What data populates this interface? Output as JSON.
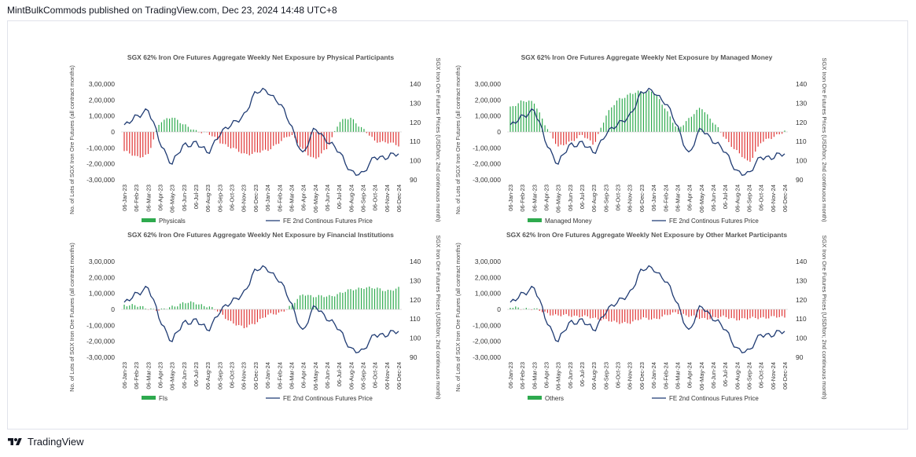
{
  "header": {
    "publisher_line": "MintBulkCommods published on TradingView.com, Dec 23, 2024 14:48 UTC+8"
  },
  "footer": {
    "brand": "TradingView",
    "logo_icon": "tradingview-logo-icon"
  },
  "colors": {
    "positive_bar": "#2eaa4e",
    "negative_bar": "#e03535",
    "price_line": "#1f3b73",
    "axis_text": "#333333"
  },
  "shared": {
    "dates": [
      "06-Jan-23",
      "06-Feb-23",
      "06-Mar-23",
      "06-Apr-23",
      "06-May-23",
      "06-Jun-23",
      "06-Jul-23",
      "06-Aug-23",
      "06-Sep-23",
      "06-Oct-23",
      "06-Nov-23",
      "06-Dec-23",
      "06-Jan-24",
      "06-Feb-24",
      "06-Mar-24",
      "06-Apr-24",
      "06-May-24",
      "06-Jun-24",
      "06-Jul-24",
      "06-Aug-24",
      "06-Sep-24",
      "06-Oct-24",
      "06-Nov-24",
      "06-Dec-24"
    ],
    "left_ticks": [
      "3,00,000",
      "2,00,000",
      "1,00,000",
      "0",
      "-1,00,000",
      "-2,00,000",
      "-3,00,000"
    ],
    "right_ticks": [
      "140",
      "130",
      "120",
      "110",
      "100",
      "90"
    ],
    "ylabel_left": "No. of Lots of SGX Iron Ore Futures (all contract months)",
    "ylabel_right": "SGX Iron Ore Futures Prices (USD/ton; 2nd continuous month)",
    "line_series_name": "FE 2nd Continous Futures Price",
    "price_monthly": [
      117,
      124,
      126,
      110,
      98,
      108,
      110,
      103,
      115,
      118,
      124,
      135,
      137,
      130,
      118,
      103,
      117,
      111,
      104,
      95,
      92,
      103,
      101,
      104
    ]
  },
  "chart_data": [
    {
      "type": "bar",
      "title": "SGX 62% Iron Ore Futures Aggregate Weekly Net Exposure by Physical Participants",
      "ylabel": "No. of Lots of SGX Iron Ore Futures (all contract months)",
      "ylabel_right": "SGX Iron Ore Futures Prices (USD/ton; 2nd continuous month)",
      "ylim": [
        -300000,
        300000
      ],
      "ylim_right": [
        90,
        140
      ],
      "categories": [
        "06-Jan-23",
        "06-Feb-23",
        "06-Mar-23",
        "06-Apr-23",
        "06-May-23",
        "06-Jun-23",
        "06-Jul-23",
        "06-Aug-23",
        "06-Sep-23",
        "06-Oct-23",
        "06-Nov-23",
        "06-Dec-23",
        "06-Jan-24",
        "06-Feb-24",
        "06-Mar-24",
        "06-Apr-24",
        "06-May-24",
        "06-Jun-24",
        "06-Jul-24",
        "06-Aug-24",
        "06-Sep-24",
        "06-Oct-24",
        "06-Nov-24",
        "06-Dec-24"
      ],
      "series": [
        {
          "name": "Physicals",
          "type": "bar",
          "values": [
            -120000,
            -160000,
            -140000,
            60000,
            100000,
            40000,
            10000,
            -10000,
            -60000,
            -100000,
            -140000,
            -130000,
            -120000,
            -60000,
            -20000,
            -110000,
            -180000,
            -100000,
            60000,
            90000,
            20000,
            -60000,
            -60000,
            -90000
          ]
        },
        {
          "name": "FE 2nd Continous Futures Price",
          "type": "line",
          "values": [
            117,
            124,
            126,
            110,
            98,
            108,
            110,
            103,
            115,
            118,
            124,
            135,
            137,
            130,
            118,
            103,
            117,
            111,
            104,
            95,
            92,
            103,
            101,
            104
          ]
        }
      ],
      "legend": "bottom"
    },
    {
      "type": "bar",
      "title": "SGX 62% Iron Ore Futures Aggregate Weekly Net Exposure by Managed Money",
      "ylabel": "No. of Lots of SGX Iron Ore Futures (all contract months)",
      "ylabel_right": "SGX Iron Ore Futures Prices (USD/ton; 2nd continuous month)",
      "ylim": [
        -300000,
        300000
      ],
      "ylim_right": [
        90,
        140
      ],
      "categories": [
        "06-Jan-23",
        "06-Feb-23",
        "06-Mar-23",
        "06-Apr-23",
        "06-May-23",
        "06-Jun-23",
        "06-Jul-23",
        "06-Aug-23",
        "06-Sep-23",
        "06-Oct-23",
        "06-Nov-23",
        "06-Dec-23",
        "06-Jan-24",
        "06-Feb-24",
        "06-Mar-24",
        "06-Apr-24",
        "06-May-24",
        "06-Jun-24",
        "06-Jul-24",
        "06-Aug-24",
        "06-Sep-24",
        "06-Oct-24",
        "06-Nov-24",
        "06-Dec-24"
      ],
      "series": [
        {
          "name": "Managed Money",
          "type": "bar",
          "values": [
            150000,
            200000,
            180000,
            40000,
            -100000,
            -60000,
            -20000,
            -80000,
            100000,
            200000,
            240000,
            250000,
            260000,
            140000,
            20000,
            80000,
            160000,
            60000,
            -40000,
            -120000,
            -200000,
            -60000,
            -40000,
            10000
          ]
        },
        {
          "name": "FE 2nd Continous Futures Price",
          "type": "line",
          "values": [
            117,
            124,
            126,
            110,
            98,
            108,
            110,
            103,
            115,
            118,
            124,
            135,
            137,
            130,
            118,
            103,
            117,
            111,
            104,
            95,
            92,
            103,
            101,
            104
          ]
        }
      ],
      "legend": "bottom"
    },
    {
      "type": "bar",
      "title": "SGX 62% Iron Ore Futures Aggregate Weekly Net Exposure by Financial Institutions",
      "ylabel": "No. of Lots of SGX Iron Ore Futures (all contract months)",
      "ylabel_right": "SGX Iron Ore Futures Prices (USD/ton; 2nd continuous month)",
      "ylim": [
        -300000,
        300000
      ],
      "ylim_right": [
        90,
        140
      ],
      "categories": [
        "06-Jan-23",
        "06-Feb-23",
        "06-Mar-23",
        "06-Apr-23",
        "06-May-23",
        "06-Jun-23",
        "06-Jul-23",
        "06-Aug-23",
        "06-Sep-23",
        "06-Oct-23",
        "06-Nov-23",
        "06-Dec-23",
        "06-Jan-24",
        "06-Feb-24",
        "06-Mar-24",
        "06-Apr-24",
        "06-May-24",
        "06-Jun-24",
        "06-Jul-24",
        "06-Aug-24",
        "06-Sep-24",
        "06-Oct-24",
        "06-Nov-24",
        "06-Dec-24"
      ],
      "series": [
        {
          "name": "FIs",
          "type": "bar",
          "values": [
            30000,
            20000,
            10000,
            -10000,
            20000,
            40000,
            40000,
            20000,
            -20000,
            -80000,
            -120000,
            -80000,
            -40000,
            -20000,
            20000,
            100000,
            80000,
            80000,
            100000,
            120000,
            140000,
            130000,
            120000,
            130000
          ]
        },
        {
          "name": "FE 2nd Continous Futures Price",
          "type": "line",
          "values": [
            117,
            124,
            126,
            110,
            98,
            108,
            110,
            103,
            115,
            118,
            124,
            135,
            137,
            130,
            118,
            103,
            117,
            111,
            104,
            95,
            92,
            103,
            101,
            104
          ]
        }
      ],
      "legend": "bottom"
    },
    {
      "type": "bar",
      "title": "SGX 62% Iron Ore Futures Aggregate Weekly Net Exposure by Other Market Participants",
      "ylabel": "No. of Lots of SGX Iron Ore Futures (all contract months)",
      "ylabel_right": "SGX Iron Ore Futures Prices (USD/ton; 2nd continuous month)",
      "ylim": [
        -300000,
        300000
      ],
      "ylim_right": [
        90,
        140
      ],
      "categories": [
        "06-Jan-23",
        "06-Feb-23",
        "06-Mar-23",
        "06-Apr-23",
        "06-May-23",
        "06-Jun-23",
        "06-Jul-23",
        "06-Aug-23",
        "06-Sep-23",
        "06-Oct-23",
        "06-Nov-23",
        "06-Dec-23",
        "06-Jan-24",
        "06-Feb-24",
        "06-Mar-24",
        "06-Apr-24",
        "06-May-24",
        "06-Jun-24",
        "06-Jul-24",
        "06-Aug-24",
        "06-Sep-24",
        "06-Oct-24",
        "06-Nov-24",
        "06-Dec-24"
      ],
      "series": [
        {
          "name": "Others",
          "type": "bar",
          "values": [
            10000,
            10000,
            0,
            -20000,
            -40000,
            -40000,
            -40000,
            -60000,
            -60000,
            -90000,
            -80000,
            -60000,
            -60000,
            -40000,
            -20000,
            -40000,
            -60000,
            -50000,
            -50000,
            -60000,
            -60000,
            -50000,
            -50000,
            -50000
          ]
        },
        {
          "name": "FE 2nd Continous Futures Price",
          "type": "line",
          "values": [
            117,
            124,
            126,
            110,
            98,
            108,
            110,
            103,
            115,
            118,
            124,
            135,
            137,
            130,
            118,
            103,
            117,
            111,
            104,
            95,
            92,
            103,
            101,
            104
          ]
        }
      ],
      "legend": "bottom"
    }
  ]
}
